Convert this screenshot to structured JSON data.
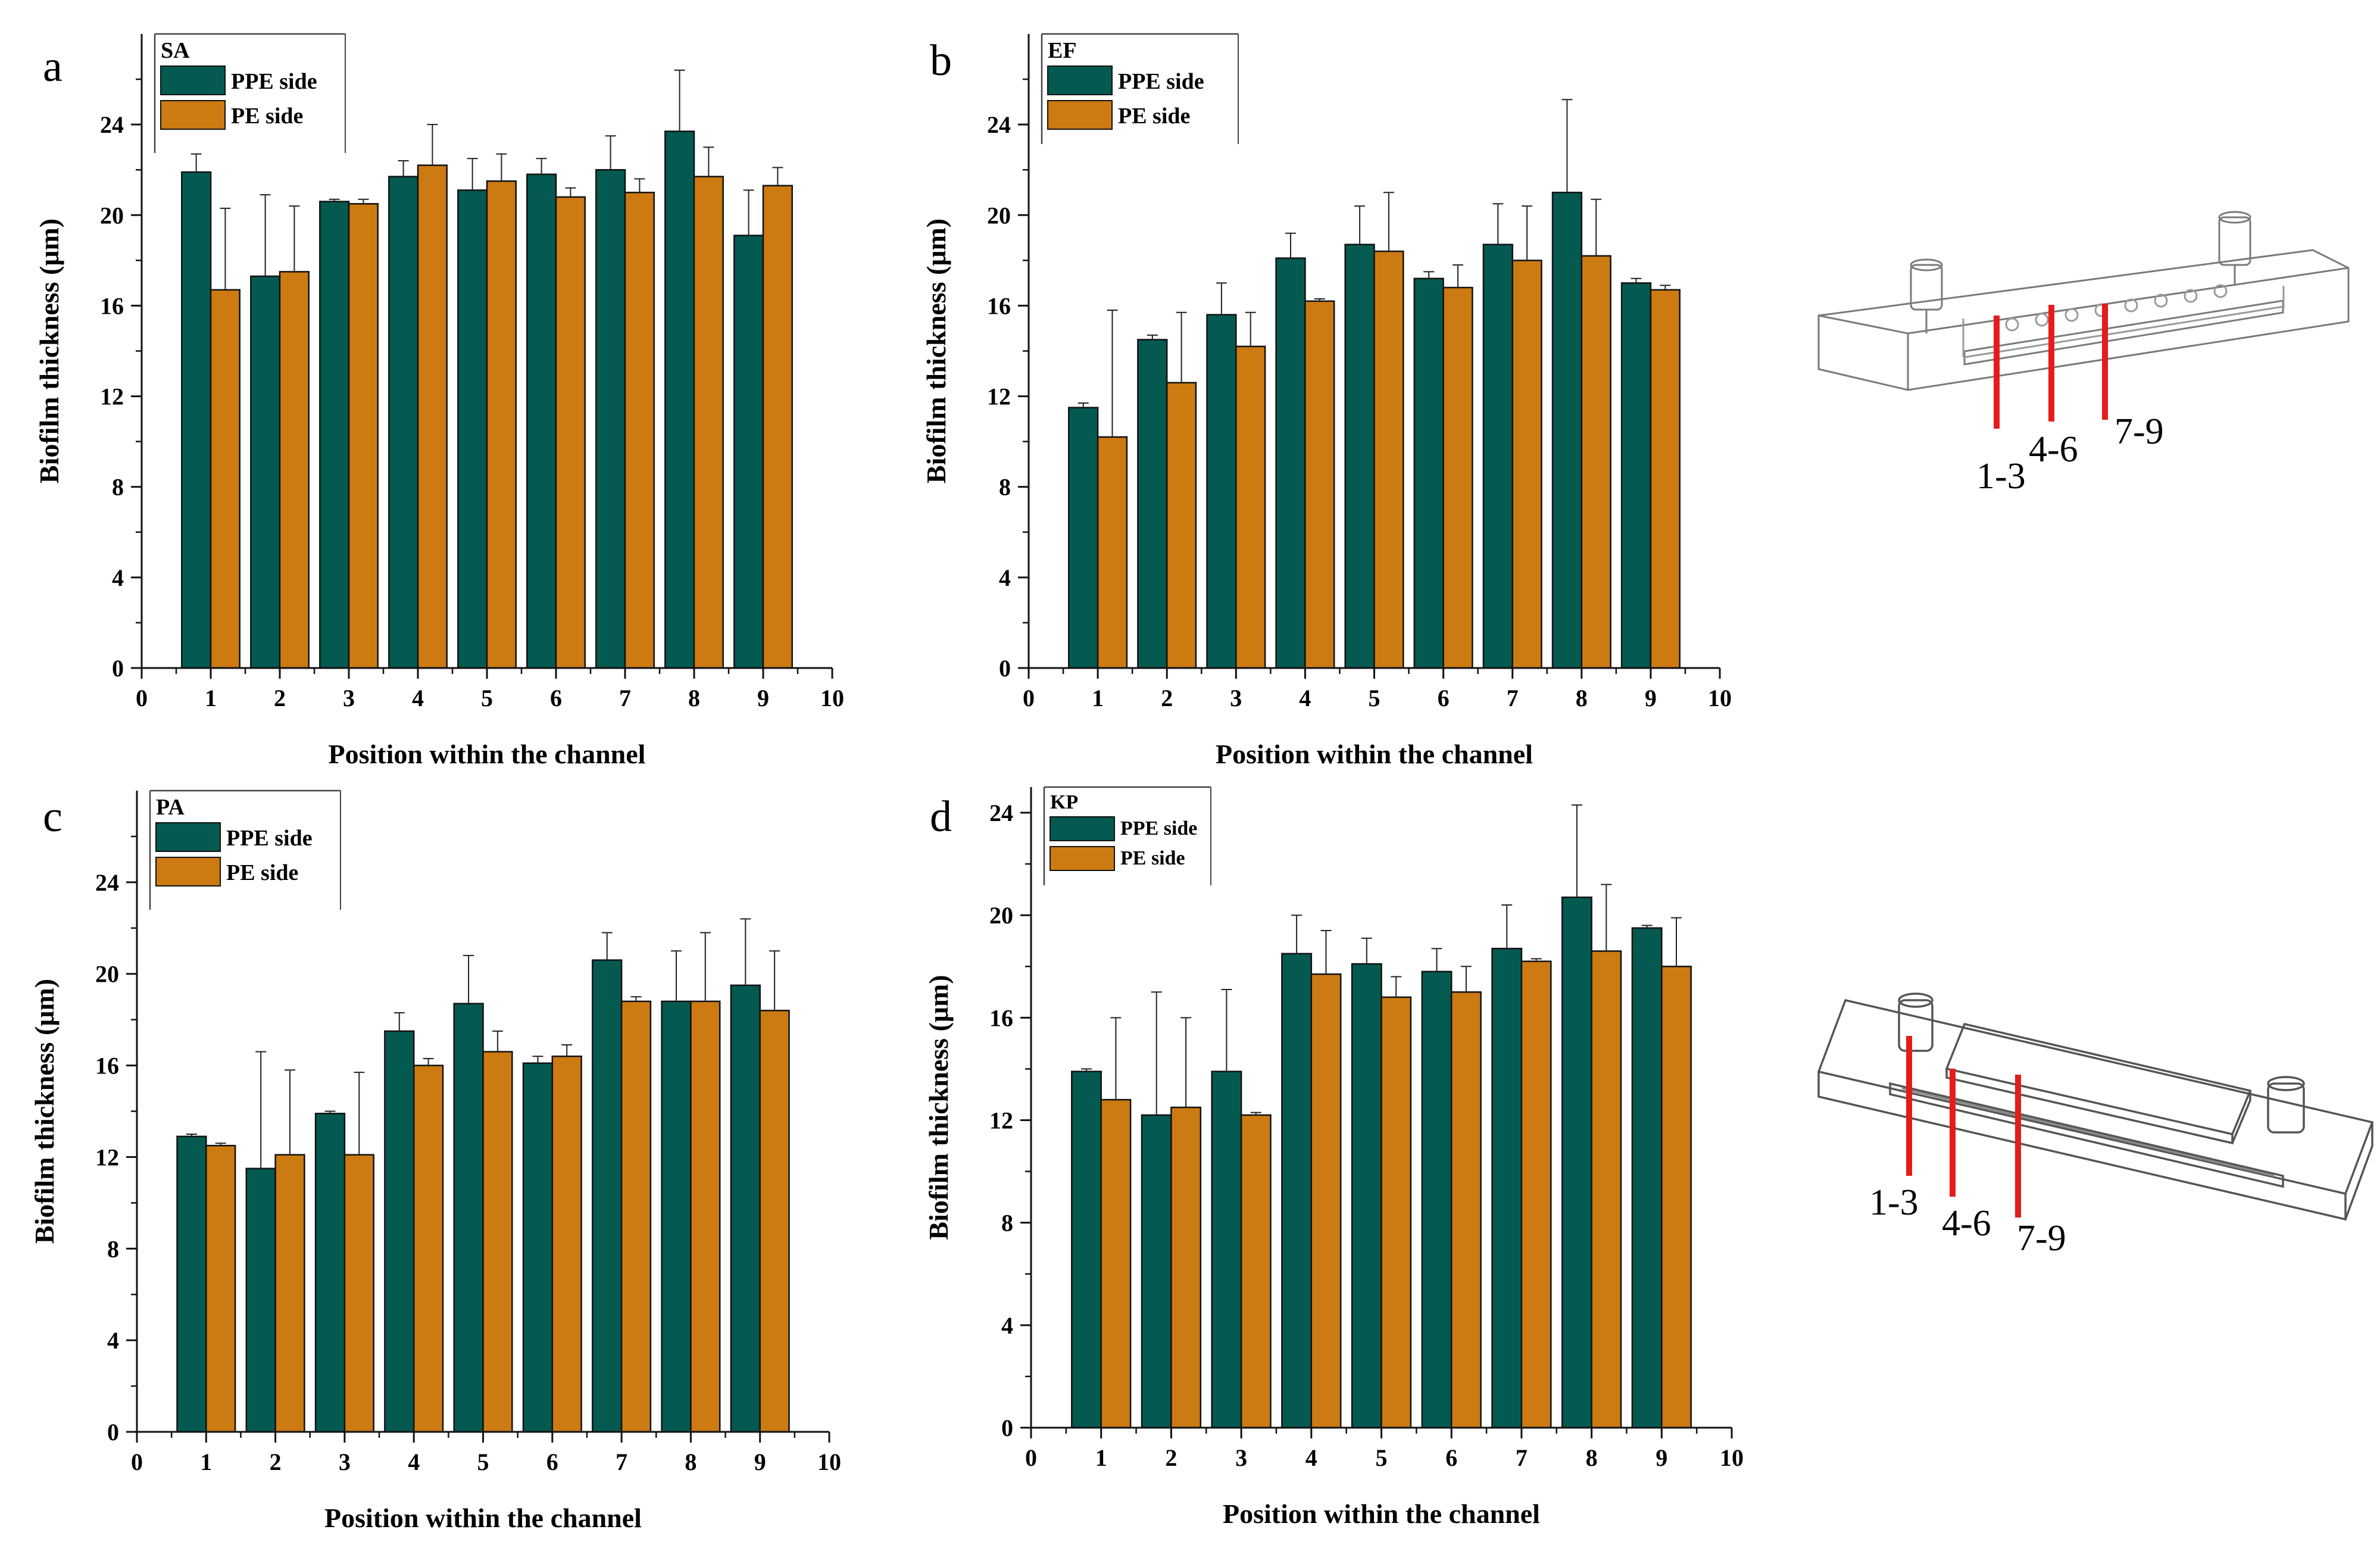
{
  "figure": {
    "series_names": [
      "PPE side",
      "PE side"
    ],
    "colors": {
      "ppe": "#045a50",
      "pe": "#cc7a12"
    },
    "schematics": [
      {
        "panel": "top",
        "labels": [
          "1-3",
          "4-6",
          "7-9"
        ]
      },
      {
        "panel": "bottom",
        "labels": [
          "1-3",
          "4-6",
          "7-9"
        ]
      }
    ]
  },
  "chart_data": [
    {
      "panel": "a",
      "type": "bar",
      "legend_title": "SA",
      "xlabel": "Position within the channel",
      "ylabel": "Biofilm thickness (μm)",
      "xlim": [
        0,
        10
      ],
      "ylim": [
        0,
        28
      ],
      "xticks": [
        0,
        1,
        2,
        3,
        4,
        5,
        6,
        7,
        8,
        9,
        10
      ],
      "yticks": [
        0,
        4,
        8,
        12,
        16,
        20,
        24
      ],
      "categories": [
        1,
        2,
        3,
        4,
        5,
        6,
        7,
        8,
        9
      ],
      "series": [
        {
          "name": "PPE side",
          "values": [
            21.9,
            17.3,
            20.6,
            21.7,
            21.1,
            21.8,
            22.0,
            23.7,
            19.1
          ],
          "errors": [
            0.8,
            3.6,
            0.1,
            0.7,
            1.4,
            0.7,
            1.5,
            2.7,
            2.0
          ]
        },
        {
          "name": "PE side",
          "values": [
            16.7,
            17.5,
            20.5,
            22.2,
            21.5,
            20.8,
            21.0,
            21.7,
            21.3
          ],
          "errors": [
            3.6,
            2.9,
            0.2,
            1.8,
            1.2,
            0.4,
            0.6,
            1.3,
            0.8
          ]
        }
      ]
    },
    {
      "panel": "b",
      "type": "bar",
      "legend_title": "EF",
      "xlabel": "Position within the channel",
      "ylabel": "Biofilm thickness (μm)",
      "xlim": [
        0,
        10
      ],
      "ylim": [
        0,
        28
      ],
      "xticks": [
        0,
        1,
        2,
        3,
        4,
        5,
        6,
        7,
        8,
        9,
        10
      ],
      "yticks": [
        0,
        4,
        8,
        12,
        16,
        20,
        24
      ],
      "categories": [
        1,
        2,
        3,
        4,
        5,
        6,
        7,
        8,
        9
      ],
      "series": [
        {
          "name": "PPE side",
          "values": [
            11.5,
            14.5,
            15.6,
            18.1,
            18.7,
            17.2,
            18.7,
            21.0,
            17.0
          ],
          "errors": [
            0.2,
            0.2,
            1.4,
            1.1,
            1.7,
            0.3,
            1.8,
            4.1,
            0.2
          ]
        },
        {
          "name": "PE side",
          "values": [
            10.2,
            12.6,
            14.2,
            16.2,
            18.4,
            16.8,
            18.0,
            18.2,
            16.7
          ],
          "errors": [
            5.6,
            3.1,
            1.5,
            0.1,
            2.6,
            1.0,
            2.4,
            2.5,
            0.2
          ]
        }
      ]
    },
    {
      "panel": "c",
      "type": "bar",
      "legend_title": "PA",
      "xlabel": "Position within the channel",
      "ylabel": "Biofilm thickness (μm)",
      "xlim": [
        0,
        10
      ],
      "ylim": [
        0,
        28
      ],
      "xticks": [
        0,
        1,
        2,
        3,
        4,
        5,
        6,
        7,
        8,
        9,
        10
      ],
      "yticks": [
        0,
        4,
        8,
        12,
        16,
        20,
        24
      ],
      "categories": [
        1,
        2,
        3,
        4,
        5,
        6,
        7,
        8,
        9
      ],
      "series": [
        {
          "name": "PPE side",
          "values": [
            12.9,
            11.5,
            13.9,
            17.5,
            18.7,
            16.1,
            20.6,
            18.8,
            19.5
          ],
          "errors": [
            0.1,
            5.1,
            0.1,
            0.8,
            2.1,
            0.3,
            1.2,
            2.2,
            2.9
          ]
        },
        {
          "name": "PE side",
          "values": [
            12.5,
            12.1,
            12.1,
            16.0,
            16.6,
            16.4,
            18.8,
            18.8,
            18.4
          ],
          "errors": [
            0.1,
            3.7,
            3.6,
            0.3,
            0.9,
            0.5,
            0.2,
            3.0,
            2.6
          ]
        }
      ]
    },
    {
      "panel": "d",
      "type": "bar",
      "legend_title": "KP",
      "xlabel": "Position within the channel",
      "ylabel": "Biofilm thickness (μm)",
      "xlim": [
        0,
        10
      ],
      "ylim": [
        0,
        25
      ],
      "xticks": [
        0,
        1,
        2,
        3,
        4,
        5,
        6,
        7,
        8,
        9,
        10
      ],
      "yticks": [
        0,
        4,
        8,
        12,
        16,
        20,
        24
      ],
      "categories": [
        1,
        2,
        3,
        4,
        5,
        6,
        7,
        8,
        9
      ],
      "series": [
        {
          "name": "PPE side",
          "values": [
            13.9,
            12.2,
            13.9,
            18.5,
            18.1,
            17.8,
            18.7,
            20.7,
            19.5
          ],
          "errors": [
            0.1,
            4.8,
            3.2,
            1.5,
            1.0,
            0.9,
            1.7,
            3.6,
            0.1
          ]
        },
        {
          "name": "PE side",
          "values": [
            12.8,
            12.5,
            12.2,
            17.7,
            16.8,
            17.0,
            18.2,
            18.6,
            18.0
          ],
          "errors": [
            3.2,
            3.5,
            0.1,
            1.7,
            0.8,
            1.0,
            0.1,
            2.6,
            1.9
          ]
        }
      ]
    }
  ]
}
